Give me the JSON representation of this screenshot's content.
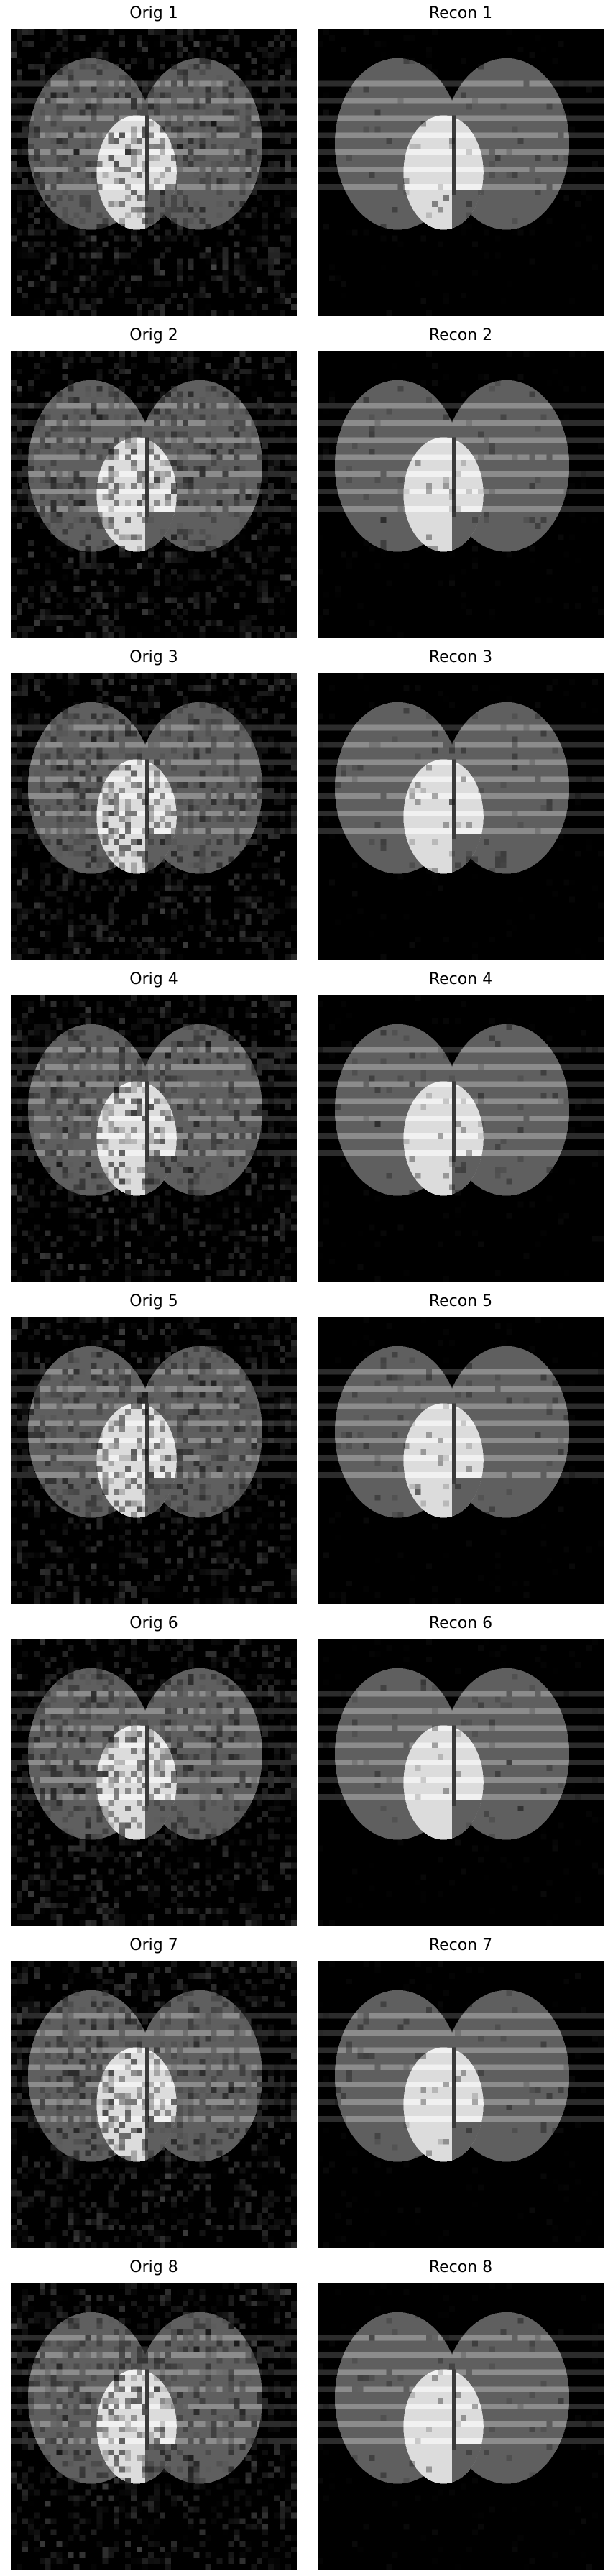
{
  "panels": [
    {
      "id": "orig-1",
      "title": "Orig 1",
      "kind": "original"
    },
    {
      "id": "recon-1",
      "title": "Recon 1",
      "kind": "reconstruction"
    },
    {
      "id": "orig-2",
      "title": "Orig 2",
      "kind": "original"
    },
    {
      "id": "recon-2",
      "title": "Recon 2",
      "kind": "reconstruction"
    },
    {
      "id": "orig-3",
      "title": "Orig 3",
      "kind": "original"
    },
    {
      "id": "recon-3",
      "title": "Recon 3",
      "kind": "reconstruction"
    },
    {
      "id": "orig-4",
      "title": "Orig 4",
      "kind": "original"
    },
    {
      "id": "recon-4",
      "title": "Recon 4",
      "kind": "reconstruction"
    },
    {
      "id": "orig-5",
      "title": "Orig 5",
      "kind": "original"
    },
    {
      "id": "recon-5",
      "title": "Recon 5",
      "kind": "reconstruction"
    },
    {
      "id": "orig-6",
      "title": "Orig 6",
      "kind": "original"
    },
    {
      "id": "recon-6",
      "title": "Recon 6",
      "kind": "reconstruction"
    },
    {
      "id": "orig-7",
      "title": "Orig 7",
      "kind": "original"
    },
    {
      "id": "recon-7",
      "title": "Recon 7",
      "kind": "reconstruction"
    },
    {
      "id": "orig-8",
      "title": "Orig 8",
      "kind": "original"
    },
    {
      "id": "recon-8",
      "title": "Recon 8",
      "kind": "reconstruction"
    }
  ],
  "colors": {
    "background": "#000000",
    "ellipse": "#5f5f5f",
    "bright_region": "#dcdcdc",
    "stripe": "#8c8c8c",
    "title_text": "#000000"
  }
}
